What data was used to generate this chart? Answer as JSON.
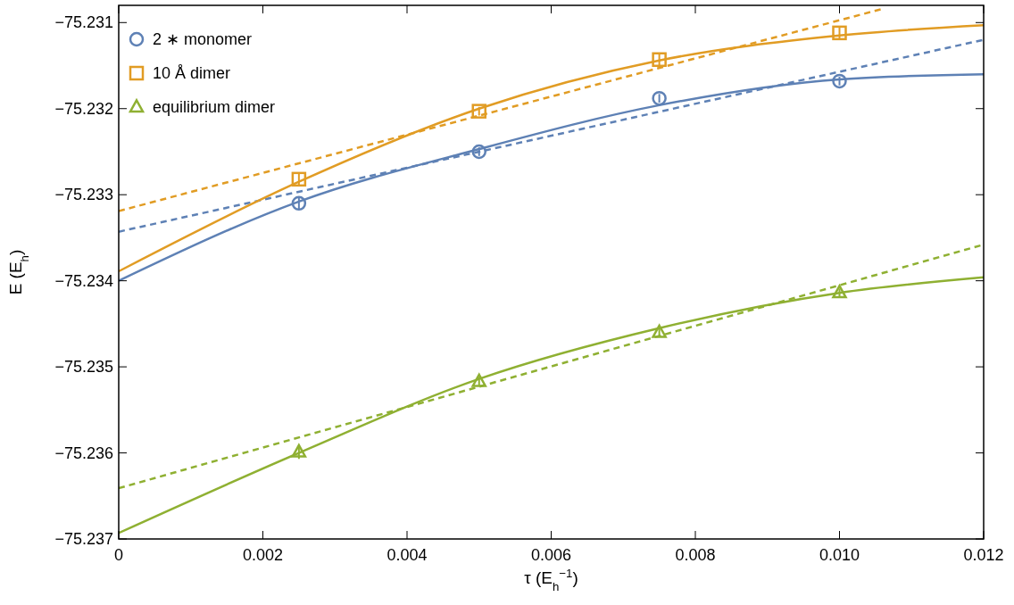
{
  "chart_data": {
    "type": "scatter",
    "xlabel": "τ (E$_{h}$$^{−1}$)",
    "ylabel": "E (E$_{h}$)",
    "xlim": [
      0,
      0.012
    ],
    "ylim": [
      -75.237,
      -75.2308
    ],
    "xticks": [
      0,
      0.002,
      0.004,
      0.006,
      0.008,
      {
        "value": 0.01,
        "label": "0.010"
      },
      0.012
    ],
    "yticks": [
      {
        "value": -75.237,
        "label": "−75.237"
      },
      {
        "value": -75.236,
        "label": "−75.236"
      },
      {
        "value": -75.235,
        "label": "−75.235"
      },
      {
        "value": -75.234,
        "label": "−75.234"
      },
      {
        "value": -75.233,
        "label": "−75.233"
      },
      {
        "value": -75.232,
        "label": "−75.232"
      },
      {
        "value": -75.231,
        "label": "−75.231"
      }
    ],
    "grid": false,
    "legend": "top left",
    "series": [
      {
        "name": "2 ∗ monomer",
        "marker": "circle",
        "color": "#5e81b5",
        "x": [
          0.0025,
          0.005,
          0.0075,
          0.01
        ],
        "values": [
          -75.2331,
          -75.2325,
          -75.23188,
          -75.23168
        ],
        "errors": [
          7e-05,
          5e-05,
          5e-05,
          5e-05
        ]
      },
      {
        "name": "10 Å dimer",
        "marker": "square",
        "color": "#e19c24",
        "x": [
          0.0025,
          0.005,
          0.0075,
          0.01
        ],
        "values": [
          -75.23282,
          -75.23203,
          -75.23143,
          -75.23112
        ],
        "errors": [
          7e-05,
          5e-05,
          7e-05,
          7e-05
        ]
      },
      {
        "name": "equilibrium dimer",
        "marker": "triangle",
        "color": "#8fb032",
        "x": [
          0.0025,
          0.005,
          0.0075,
          0.01
        ],
        "values": [
          -75.23599,
          -75.23517,
          -75.2346,
          -75.23414
        ],
        "errors": [
          8e-05,
          5e-05,
          5e-05,
          5e-05
        ]
      },
      {
        "type": "line",
        "marker": "none",
        "line_style": "solid",
        "color": "#5e81b5",
        "x": [
          0,
          0.0025,
          0.005,
          0.0075,
          0.01,
          0.012
        ],
        "values": [
          -75.234,
          -75.23308,
          -75.23247,
          -75.23196,
          -75.23166,
          -75.2316
        ]
      },
      {
        "type": "line",
        "marker": "none",
        "line_style": "dashed",
        "color": "#5e81b5",
        "x": [
          0,
          0.012
        ],
        "values": [
          -75.23343,
          -75.2312
        ]
      },
      {
        "type": "line",
        "marker": "none",
        "line_style": "solid",
        "color": "#e19c24",
        "x": [
          0,
          0.0025,
          0.005,
          0.0075,
          0.01,
          0.012
        ],
        "values": [
          -75.23389,
          -75.23285,
          -75.232,
          -75.23144,
          -75.23115,
          -75.23103
        ]
      },
      {
        "type": "line",
        "marker": "none",
        "line_style": "dashed",
        "color": "#e19c24",
        "x": [
          0,
          0.0106
        ],
        "values": [
          -75.23319,
          -75.23084
        ]
      },
      {
        "type": "line",
        "marker": "none",
        "line_style": "solid",
        "color": "#8fb032",
        "x": [
          0,
          0.0025,
          0.005,
          0.0075,
          0.01,
          0.012
        ],
        "values": [
          -75.23693,
          -75.236,
          -75.23514,
          -75.23455,
          -75.23414,
          -75.23396
        ]
      },
      {
        "type": "line",
        "marker": "none",
        "line_style": "dashed",
        "color": "#8fb032",
        "x": [
          0,
          0.012
        ],
        "values": [
          -75.23641,
          -75.23358
        ]
      }
    ]
  }
}
